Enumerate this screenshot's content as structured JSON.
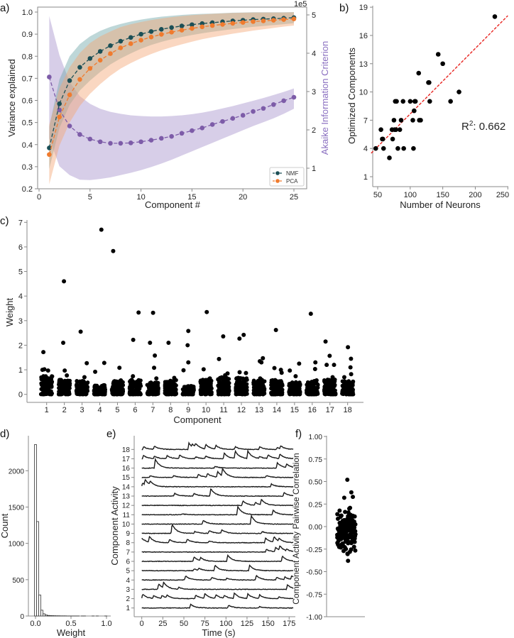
{
  "panel_labels": [
    "a)",
    "b)",
    "c)",
    "d)",
    "e)",
    "f)"
  ],
  "chart_data": [
    {
      "id": "a",
      "type": "line",
      "xlabel": "Component #",
      "ylabel": "Variance explained",
      "y2label": "Akaike Information Criterion",
      "y2_offset_label": "1e5",
      "xlim": [
        0,
        26
      ],
      "ylim": [
        0.2,
        1.0
      ],
      "y2lim": [
        0.5,
        5.2
      ],
      "xticks": [
        0,
        5,
        10,
        15,
        20,
        25
      ],
      "yticks": [
        "0.2",
        "0.3",
        "0.4",
        "0.5",
        "0.6",
        "0.7",
        "0.8",
        "0.9",
        "1.0"
      ],
      "y2ticks": [
        1,
        2,
        3,
        4,
        5
      ],
      "legend_placement": "lower-right",
      "x": [
        1,
        2,
        3,
        4,
        5,
        6,
        7,
        8,
        9,
        10,
        11,
        12,
        13,
        14,
        15,
        16,
        17,
        18,
        19,
        20,
        21,
        22,
        23,
        24,
        25
      ],
      "series": [
        {
          "name": "NMF",
          "color": "#1b4f56",
          "band_color": "#6fa7a8",
          "values": [
            0.385,
            0.585,
            0.69,
            0.75,
            0.79,
            0.822,
            0.848,
            0.868,
            0.885,
            0.9,
            0.912,
            0.922,
            0.93,
            0.937,
            0.943,
            0.948,
            0.952,
            0.956,
            0.96,
            0.963,
            0.966,
            0.968,
            0.97,
            0.972,
            0.975
          ],
          "sd": [
            0.095,
            0.11,
            0.11,
            0.105,
            0.1,
            0.093,
            0.085,
            0.078,
            0.072,
            0.066,
            0.061,
            0.057,
            0.053,
            0.05,
            0.047,
            0.044,
            0.041,
            0.039,
            0.037,
            0.035,
            0.033,
            0.031,
            0.029,
            0.027,
            0.025
          ]
        },
        {
          "name": "PCA",
          "color": "#f07b2e",
          "band_color": "#f5a676",
          "values": [
            0.355,
            0.525,
            0.625,
            0.695,
            0.745,
            0.782,
            0.812,
            0.838,
            0.857,
            0.873,
            0.887,
            0.899,
            0.909,
            0.918,
            0.926,
            0.933,
            0.939,
            0.944,
            0.949,
            0.953,
            0.957,
            0.96,
            0.963,
            0.966,
            0.969
          ],
          "sd": [
            0.135,
            0.13,
            0.125,
            0.12,
            0.115,
            0.108,
            0.1,
            0.094,
            0.088,
            0.082,
            0.077,
            0.072,
            0.068,
            0.064,
            0.06,
            0.056,
            0.053,
            0.05,
            0.047,
            0.044,
            0.041,
            0.038,
            0.035,
            0.032,
            0.03
          ]
        }
      ],
      "aic": {
        "name": "AIC",
        "color": "#7d5ca8",
        "band_color": "#b7a6d6",
        "values": [
          3.38,
          2.52,
          2.1,
          1.88,
          1.76,
          1.69,
          1.65,
          1.65,
          1.66,
          1.69,
          1.73,
          1.78,
          1.83,
          1.91,
          1.98,
          2.05,
          2.14,
          2.22,
          2.3,
          2.38,
          2.48,
          2.56,
          2.66,
          2.76,
          2.85
        ],
        "upper": [
          4.97,
          3.95,
          3.25,
          2.88,
          2.68,
          2.55,
          2.47,
          2.42,
          2.38,
          2.36,
          2.35,
          2.35,
          2.36,
          2.38,
          2.41,
          2.45,
          2.5,
          2.56,
          2.62,
          2.69,
          2.76,
          2.83,
          2.91,
          2.99,
          3.08
        ],
        "lower": [
          1.78,
          1.05,
          0.82,
          0.7,
          0.69,
          0.72,
          0.76,
          0.82,
          0.88,
          0.95,
          1.03,
          1.12,
          1.22,
          1.33,
          1.44,
          1.55,
          1.66,
          1.77,
          1.88,
          1.99,
          2.1,
          2.2,
          2.3,
          2.42,
          2.55
        ]
      }
    },
    {
      "id": "b",
      "type": "scatter",
      "xlabel": "Number of Neurons",
      "ylabel": "Optimized Components",
      "xticks": [
        50,
        100,
        150,
        200,
        250
      ],
      "yticks": [
        1,
        4,
        7,
        10,
        13,
        16,
        19
      ],
      "r2_label": "R",
      "r2_sup": "2",
      "r2_value": ": 0.662",
      "fit_line": {
        "x": [
          40,
          250
        ],
        "y": [
          3.5,
          18.1
        ],
        "color": "#e8231f"
      },
      "points": [
        [
          47,
          4
        ],
        [
          55,
          6
        ],
        [
          57,
          5
        ],
        [
          58,
          5
        ],
        [
          59,
          4
        ],
        [
          68,
          3
        ],
        [
          72,
          6
        ],
        [
          73,
          5
        ],
        [
          75,
          7
        ],
        [
          76,
          6
        ],
        [
          77,
          9
        ],
        [
          79,
          9
        ],
        [
          78,
          6
        ],
        [
          81,
          4
        ],
        [
          84,
          6
        ],
        [
          86,
          7
        ],
        [
          89,
          9
        ],
        [
          90,
          4
        ],
        [
          100,
          9
        ],
        [
          104,
          7
        ],
        [
          105,
          4
        ],
        [
          106,
          8
        ],
        [
          107,
          9
        ],
        [
          108,
          9
        ],
        [
          113,
          12
        ],
        [
          114,
          7
        ],
        [
          116,
          7
        ],
        [
          128,
          11
        ],
        [
          129,
          11
        ],
        [
          130,
          9
        ],
        [
          143,
          14
        ],
        [
          150,
          13
        ],
        [
          162,
          9
        ],
        [
          175,
          10
        ],
        [
          230,
          18
        ]
      ]
    },
    {
      "id": "c",
      "type": "scatter",
      "xlabel": "Component",
      "ylabel": "Weight",
      "ylim": [
        0,
        7
      ],
      "yticks": [
        0,
        1,
        2,
        3,
        4,
        5,
        6,
        7
      ],
      "categories": [
        "1",
        "2",
        "3",
        "4",
        "5",
        "6",
        "7",
        "8",
        "9",
        "10",
        "11",
        "12",
        "13",
        "14",
        "15",
        "16",
        "17",
        "18"
      ],
      "bulk_max": [
        0.75,
        0.6,
        0.55,
        0.4,
        0.55,
        0.6,
        0.5,
        0.6,
        0.35,
        0.6,
        0.7,
        0.7,
        0.6,
        0.6,
        0.5,
        0.55,
        0.6,
        0.55
      ],
      "outliers": [
        [
          1.72,
          1.0,
          1.02,
          0.97
        ],
        [
          4.6,
          2.1,
          0.97,
          0.77
        ],
        [
          2.55,
          1.27,
          0.7
        ],
        [
          6.7,
          1.28,
          0.92
        ],
        [
          5.83,
          1.08,
          0.57
        ],
        [
          3.33,
          2.22,
          0.74
        ],
        [
          3.32,
          2.1,
          1.58,
          1.08,
          0.65
        ],
        [
          2.1,
          0.67
        ],
        [
          2.58,
          2.0,
          1.3,
          0.98
        ],
        [
          3.35,
          1.02,
          0.65
        ],
        [
          2.36,
          1.44,
          0.85,
          0.78
        ],
        [
          2.42,
          2.27,
          0.9,
          0.87
        ],
        [
          1.47,
          1.35,
          1.3,
          0.65
        ],
        [
          2.62,
          1.07,
          1.0,
          0.88
        ],
        [
          1.25,
          0.97,
          0.74
        ],
        [
          3.28,
          1.3,
          1.03,
          0.57
        ],
        [
          2.15,
          1.57,
          1.2,
          1.2,
          0.7
        ],
        [
          1.92,
          1.45,
          1.1,
          0.82,
          0.7
        ]
      ]
    },
    {
      "id": "d",
      "type": "bar",
      "xlabel": "Weight",
      "ylabel": "Count",
      "xticks": [
        "0.0",
        "0.5",
        "1.0"
      ],
      "yticks": [
        0,
        500,
        1000,
        1500,
        2000
      ],
      "bin_start": -0.015,
      "bin_width": 0.03,
      "counts": [
        2360,
        1300,
        290,
        80,
        30,
        15,
        8,
        6,
        5,
        4,
        3,
        3,
        2,
        2,
        2,
        1,
        1,
        1,
        1,
        1,
        1,
        0,
        1,
        1,
        0,
        0,
        0,
        1,
        0,
        1,
        0,
        0,
        0,
        1
      ]
    },
    {
      "id": "e",
      "type": "line",
      "xlabel": "Time (s)",
      "ylabel": "Component Activity",
      "xticks": [
        0,
        25,
        50,
        75,
        100,
        125,
        150,
        175
      ],
      "xlim": [
        0,
        180
      ],
      "rows": [
        "1",
        "2",
        "3",
        "4",
        "5",
        "6",
        "7",
        "8",
        "9",
        "10",
        "11",
        "12",
        "13",
        "14",
        "15",
        "16",
        "17",
        "18"
      ],
      "events": [
        [
          [
            58,
            0.4
          ],
          [
            103,
            0.3
          ],
          [
            140,
            0.15
          ]
        ],
        [
          [
            1,
            0.5
          ],
          [
            14,
            0.3
          ],
          [
            24,
            0.3
          ],
          [
            30,
            0.3
          ],
          [
            64,
            0.4
          ],
          [
            75,
            0.5
          ],
          [
            88,
            0.4
          ],
          [
            98,
            0.3
          ],
          [
            110,
            0.6
          ],
          [
            126,
            0.5
          ],
          [
            140,
            0.4
          ],
          [
            163,
            0.2
          ]
        ],
        [
          [
            20,
            0.6
          ],
          [
            26,
            0.6
          ],
          [
            44,
            0.2
          ],
          [
            173,
            0.5
          ]
        ],
        [
          [
            52,
            0.45
          ],
          [
            83,
            0.3
          ],
          [
            101,
            0.2
          ],
          [
            136,
            0.5
          ],
          [
            160,
            0.3
          ],
          [
            170,
            0.3
          ],
          [
            178,
            0.4
          ]
        ],
        [
          [
            62,
            0.2
          ],
          [
            68,
            0.2
          ],
          [
            87,
            0.6
          ],
          [
            128,
            0.6
          ]
        ],
        [
          [
            62,
            0.5
          ],
          [
            70,
            0.3
          ],
          [
            102,
            0.7
          ],
          [
            167,
            0.6
          ]
        ],
        [
          [
            148,
            0.3
          ],
          [
            159,
            0.5
          ],
          [
            164,
            0.5
          ],
          [
            172,
            0.2
          ]
        ],
        [
          [
            0,
            0.5
          ],
          [
            9,
            0.6
          ],
          [
            33,
            0.35
          ],
          [
            54,
            0.4
          ],
          [
            80,
            0.2
          ],
          [
            147,
            0.5
          ],
          [
            157,
            0.6
          ],
          [
            163,
            0.3
          ]
        ],
        [
          [
            36,
            1.0
          ],
          [
            63,
            0.2
          ],
          [
            80,
            0.3
          ],
          [
            95,
            0.4
          ],
          [
            143,
            0.2
          ]
        ],
        [
          [
            73,
            0.4
          ],
          [
            130,
            0.9
          ]
        ],
        [
          [
            48,
            0.1
          ],
          [
            114,
            0.9
          ],
          [
            156,
            0.5
          ]
        ],
        [
          [
            120,
            0.5
          ],
          [
            135,
            0.3
          ],
          [
            142,
            0.6
          ]
        ],
        [
          [
            39,
            0.3
          ],
          [
            62,
            0.3
          ],
          [
            82,
            0.8
          ],
          [
            169,
            0.4
          ]
        ],
        [
          [
            1,
            0.4
          ],
          [
            4,
            0.6
          ],
          [
            10,
            0.4
          ],
          [
            154,
            0.3
          ]
        ],
        [
          [
            10,
            0.2
          ],
          [
            38,
            0.2
          ],
          [
            67,
            0.35
          ],
          [
            78,
            0.4
          ],
          [
            90,
            0.6
          ],
          [
            96,
            0.8
          ],
          [
            148,
            0.2
          ]
        ],
        [
          [
            16,
            1.0
          ],
          [
            87,
            0.2
          ],
          [
            161,
            0.6
          ],
          [
            172,
            0.4
          ]
        ],
        [
          [
            2,
            0.35
          ],
          [
            15,
            0.25
          ],
          [
            30,
            0.35
          ],
          [
            45,
            0.4
          ],
          [
            64,
            0.2
          ],
          [
            76,
            0.3
          ],
          [
            98,
            0.6
          ],
          [
            111,
            0.8
          ],
          [
            126,
            0.8
          ],
          [
            140,
            0.2
          ],
          [
            150,
            0.4
          ],
          [
            164,
            0.5
          ]
        ],
        [
          [
            2,
            0.3
          ],
          [
            15,
            0.35
          ],
          [
            56,
            0.7
          ],
          [
            60,
            0.3
          ],
          [
            64,
            0.4
          ],
          [
            76,
            0.5
          ],
          [
            88,
            0.4
          ],
          [
            111,
            0.3
          ],
          [
            140,
            0.3
          ],
          [
            161,
            0.2
          ],
          [
            165,
            0.3
          ]
        ]
      ]
    },
    {
      "id": "f",
      "type": "scatter",
      "ylabel": "Component Activity Pairwise Correlation",
      "ylim": [
        -1,
        1
      ],
      "yticks": [
        "1.00",
        "0.75",
        "0.50",
        "0.25",
        "0.00",
        "-0.25",
        "-0.50",
        "-0.75",
        "-1.00"
      ],
      "n_points": 153,
      "mean": -0.05,
      "sd": 0.11,
      "outliers": [
        0.52,
        0.38,
        0.33,
        0.32,
        0.2,
        -0.3,
        -0.28,
        -0.38
      ]
    }
  ]
}
